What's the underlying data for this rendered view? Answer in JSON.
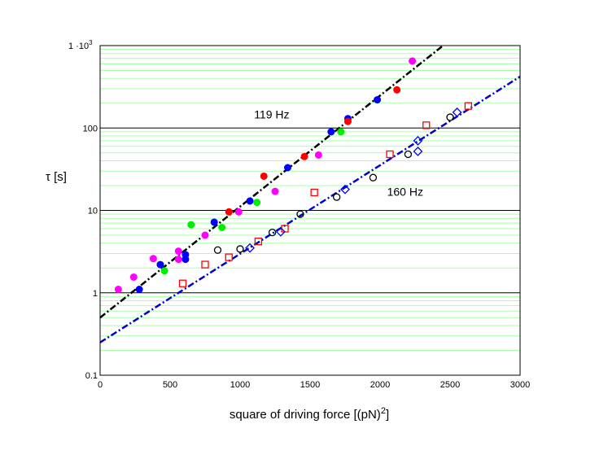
{
  "chart_data": {
    "type": "scatter",
    "xlabel": "square of driving force [(pN)",
    "xlabel_sup": "2",
    "xlabel_close": "]",
    "ylabel": "τ  [s]",
    "yscale": "log",
    "xlim": [
      0,
      3000
    ],
    "ylim": [
      0.1,
      1000
    ],
    "x_ticks": [
      "0",
      "500",
      "1000",
      "1500",
      "2000",
      "2500",
      "3000"
    ],
    "y_ticks": [
      "0.1",
      "1",
      "10",
      "100"
    ],
    "y_top_tick": "1 ·10",
    "y_top_tick_sup": "3",
    "grid": "horizontal",
    "annotations": [
      {
        "text": "119 Hz",
        "x": 1100,
        "y": 130
      },
      {
        "text": "160 Hz",
        "x": 2050,
        "y": 15
      }
    ],
    "colors": {
      "fit_119": "#000000",
      "fit_160": "#0000cc",
      "minor_grid": "#aaffaa",
      "major_grid": "#000000"
    },
    "fits": [
      {
        "group": "119 Hz",
        "x": [
          0,
          2450
        ],
        "y": [
          0.5,
          1000
        ],
        "color": "#000000"
      },
      {
        "group": "160 Hz",
        "x": [
          0,
          3000
        ],
        "y": [
          0.25,
          420
        ],
        "color": "#0000cc"
      }
    ],
    "series": [
      {
        "marker": "filled-circle",
        "color": "#ff00ff",
        "group": "119 Hz",
        "x": [
          130,
          240,
          380,
          560,
          560,
          750,
          990,
          1250,
          1560,
          2230
        ],
        "y": [
          1.1,
          1.55,
          2.6,
          3.2,
          2.55,
          5.0,
          9.6,
          17.0,
          47.0,
          650
        ]
      },
      {
        "marker": "filled-circle",
        "color": "#0000ff",
        "group": "119 Hz",
        "x": [
          280,
          430,
          610,
          610,
          815,
          1070,
          1340,
          1650,
          1770,
          1980
        ],
        "y": [
          1.1,
          2.2,
          2.9,
          2.55,
          7.2,
          13.0,
          33.0,
          90.0,
          130.0,
          220.0
        ]
      },
      {
        "marker": "filled-circle",
        "color": "#00ee00",
        "group": "119 Hz",
        "x": [
          460,
          650,
          870,
          1120,
          1720
        ],
        "y": [
          1.85,
          6.7,
          6.2,
          12.5,
          90.0
        ]
      },
      {
        "marker": "filled-circle",
        "color": "#ff0000",
        "group": "119 Hz",
        "x": [
          920,
          1170,
          1460,
          1770,
          2120
        ],
        "y": [
          9.6,
          26.0,
          45.0,
          120.0,
          290.0
        ]
      },
      {
        "marker": "open-circle",
        "color": "#000000",
        "group": "160 Hz",
        "x": [
          840,
          1000,
          1230,
          1430,
          1690,
          1950,
          2200,
          2500
        ],
        "y": [
          3.3,
          3.4,
          5.4,
          9.0,
          14.5,
          25.0,
          48.0,
          135.0
        ]
      },
      {
        "marker": "open-square",
        "color": "#ff0000",
        "group": "160 Hz",
        "x": [
          590,
          750,
          920,
          1130,
          1320,
          1530,
          2070,
          2330,
          2630
        ],
        "y": [
          1.3,
          2.2,
          2.7,
          4.2,
          6.0,
          16.5,
          48.0,
          108.0,
          185.0
        ]
      },
      {
        "marker": "open-diamond",
        "color": "#0000ff",
        "group": "160 Hz",
        "x": [
          1070,
          1290,
          1750,
          2270,
          2270,
          2550
        ],
        "y": [
          3.5,
          5.5,
          18.0,
          52.0,
          70.0,
          155.0
        ]
      }
    ]
  }
}
